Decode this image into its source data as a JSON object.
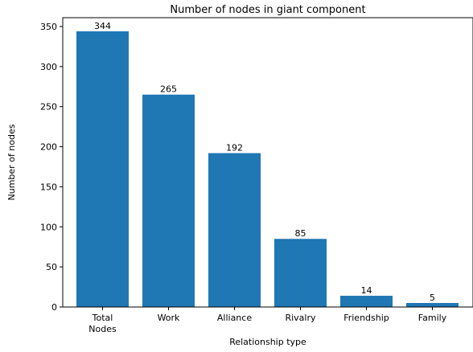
{
  "chart_data": {
    "type": "bar",
    "title": "Number of nodes in giant component",
    "xlabel": "Relationship type",
    "ylabel": "Number of nodes",
    "categories": [
      "Total\nNodes",
      "Work",
      "Alliance",
      "Rivalry",
      "Friendship",
      "Family"
    ],
    "values": [
      344,
      265,
      192,
      85,
      14,
      5
    ],
    "data_labels": [
      "344",
      "265",
      "192",
      "85",
      "14",
      "5"
    ],
    "ylim": [
      0,
      361
    ],
    "yticks": [
      0,
      50,
      100,
      150,
      200,
      250,
      300,
      350
    ],
    "grid": false,
    "legend": "none",
    "bar_color": "#1f77b4"
  }
}
